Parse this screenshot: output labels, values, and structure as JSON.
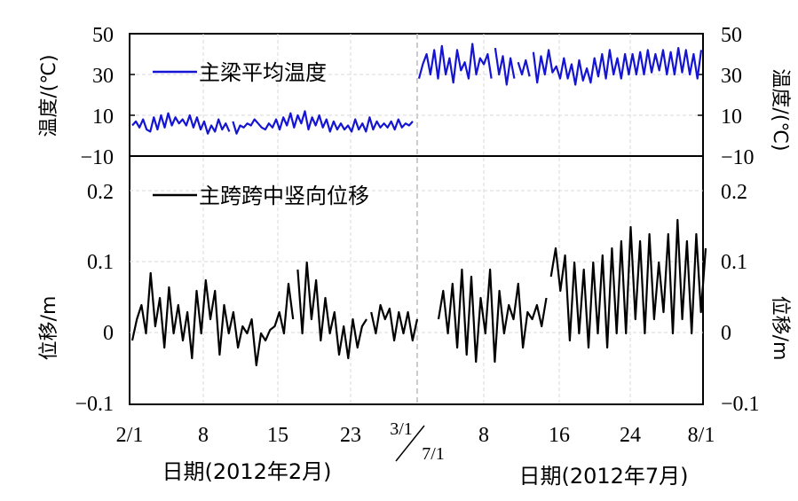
{
  "chart_data": [
    {
      "type": "line",
      "panel": "top",
      "ylabel_left": "温度/(℃)",
      "ylabel_right": "温度/(℃)",
      "ylim": [
        -10,
        50
      ],
      "yticks": [
        "50",
        "30",
        "10",
        "−10"
      ],
      "legend": {
        "label": "主梁平均温度",
        "placement": "top-left",
        "color": "#1414d2"
      },
      "grid": true,
      "series": [
        {
          "name": "主梁平均温度",
          "color": "#1414d2",
          "period": "Feb",
          "values": [
            5,
            7,
            4,
            8,
            3,
            2,
            9,
            3,
            10,
            4,
            11,
            5,
            9,
            6,
            8,
            5,
            10,
            4,
            9,
            3,
            7,
            1,
            5,
            2,
            8,
            3,
            6,
            2,
            7,
            1,
            5,
            4,
            6,
            5,
            8,
            6,
            4,
            3,
            6,
            4,
            8,
            3,
            9,
            5,
            11,
            4,
            10,
            6,
            12,
            3,
            9,
            5,
            10,
            4,
            8,
            2,
            7,
            3,
            6,
            3,
            5,
            2,
            8,
            3,
            6,
            2,
            9,
            3,
            7,
            4,
            6,
            4,
            7,
            3,
            8,
            4,
            6,
            5,
            7
          ]
        },
        {
          "name": "主梁平均温度",
          "color": "#1414d2",
          "period": "Jul",
          "values": [
            28,
            35,
            40,
            30,
            42,
            28,
            44,
            30,
            38,
            26,
            42,
            32,
            36,
            28,
            45,
            30,
            38,
            35,
            40,
            28,
            43,
            30,
            39,
            25,
            38,
            28,
            36,
            30,
            37,
            29,
            41,
            26,
            39,
            30,
            42,
            31,
            34,
            28,
            38,
            28,
            35,
            25,
            37,
            27,
            33,
            26,
            38,
            29,
            40,
            28,
            42,
            30,
            38,
            28,
            40,
            30,
            40,
            30,
            41,
            30,
            42,
            31,
            40,
            32,
            42,
            30,
            41,
            30,
            43,
            31,
            42,
            30,
            40,
            28,
            42
          ]
        }
      ]
    },
    {
      "type": "line",
      "panel": "bottom",
      "ylabel_left": "位移/m",
      "ylabel_right": "位移/m",
      "ylim": [
        -0.1,
        0.25
      ],
      "yticks": [
        "0.2",
        "0.1",
        "0",
        "−0.1"
      ],
      "legend": {
        "label": "主跨跨中竖向位移",
        "placement": "top-left",
        "color": "#000000"
      },
      "grid": true,
      "xticks_feb": [
        "2/1",
        "8",
        "15",
        "23",
        "3/1"
      ],
      "xticks_jul": [
        "7/1",
        "8",
        "16",
        "24",
        "8/1"
      ],
      "xlabel_feb": "日期(2012年2月)",
      "xlabel_jul": "日期(2012年7月)",
      "series": [
        {
          "name": "主跨跨中竖向位移",
          "color": "#000000",
          "period": "Feb",
          "values": [
            -0.01,
            0.02,
            0.04,
            0.0,
            0.085,
            0.01,
            0.05,
            -0.02,
            0.065,
            0.0,
            0.04,
            -0.01,
            0.03,
            -0.035,
            0.06,
            0.0,
            0.075,
            0.02,
            0.06,
            -0.03,
            0.04,
            0.0,
            0.03,
            -0.02,
            0.01,
            0.0,
            0.02,
            -0.045,
            0.0,
            -0.01,
            0.005,
            0.01,
            0.03,
            0.0,
            0.07,
            0.02,
            0.09,
            0.0,
            0.1,
            0.02,
            0.075,
            -0.01,
            0.05,
            0.0,
            0.03,
            -0.03,
            0.01,
            -0.035,
            0.02,
            -0.02,
            0.01,
            0.02,
            0.03,
            0.0,
            0.04,
            0.02,
            0.035,
            -0.01,
            0.03,
            0.0,
            0.03,
            -0.01,
            0.02
          ]
        },
        {
          "name": "主跨跨中竖向位移",
          "color": "#000000",
          "period": "Jul",
          "values": [
            0.02,
            0.06,
            0.0,
            0.07,
            -0.02,
            0.09,
            -0.03,
            0.08,
            -0.04,
            0.05,
            0.0,
            0.09,
            -0.04,
            0.06,
            0.0,
            0.04,
            0.02,
            0.07,
            -0.02,
            0.03,
            0.02,
            0.04,
            0.01,
            0.05,
            0.08,
            0.12,
            0.06,
            0.11,
            -0.01,
            0.1,
            0.0,
            0.09,
            -0.02,
            0.1,
            0.0,
            0.11,
            -0.02,
            0.12,
            0.0,
            0.13,
            0.0,
            0.15,
            0.02,
            0.13,
            0.0,
            0.14,
            0.02,
            0.1,
            0.03,
            0.14,
            0.0,
            0.16,
            0.02,
            0.13,
            0.0,
            0.14,
            0.03,
            0.12
          ]
        }
      ]
    }
  ]
}
